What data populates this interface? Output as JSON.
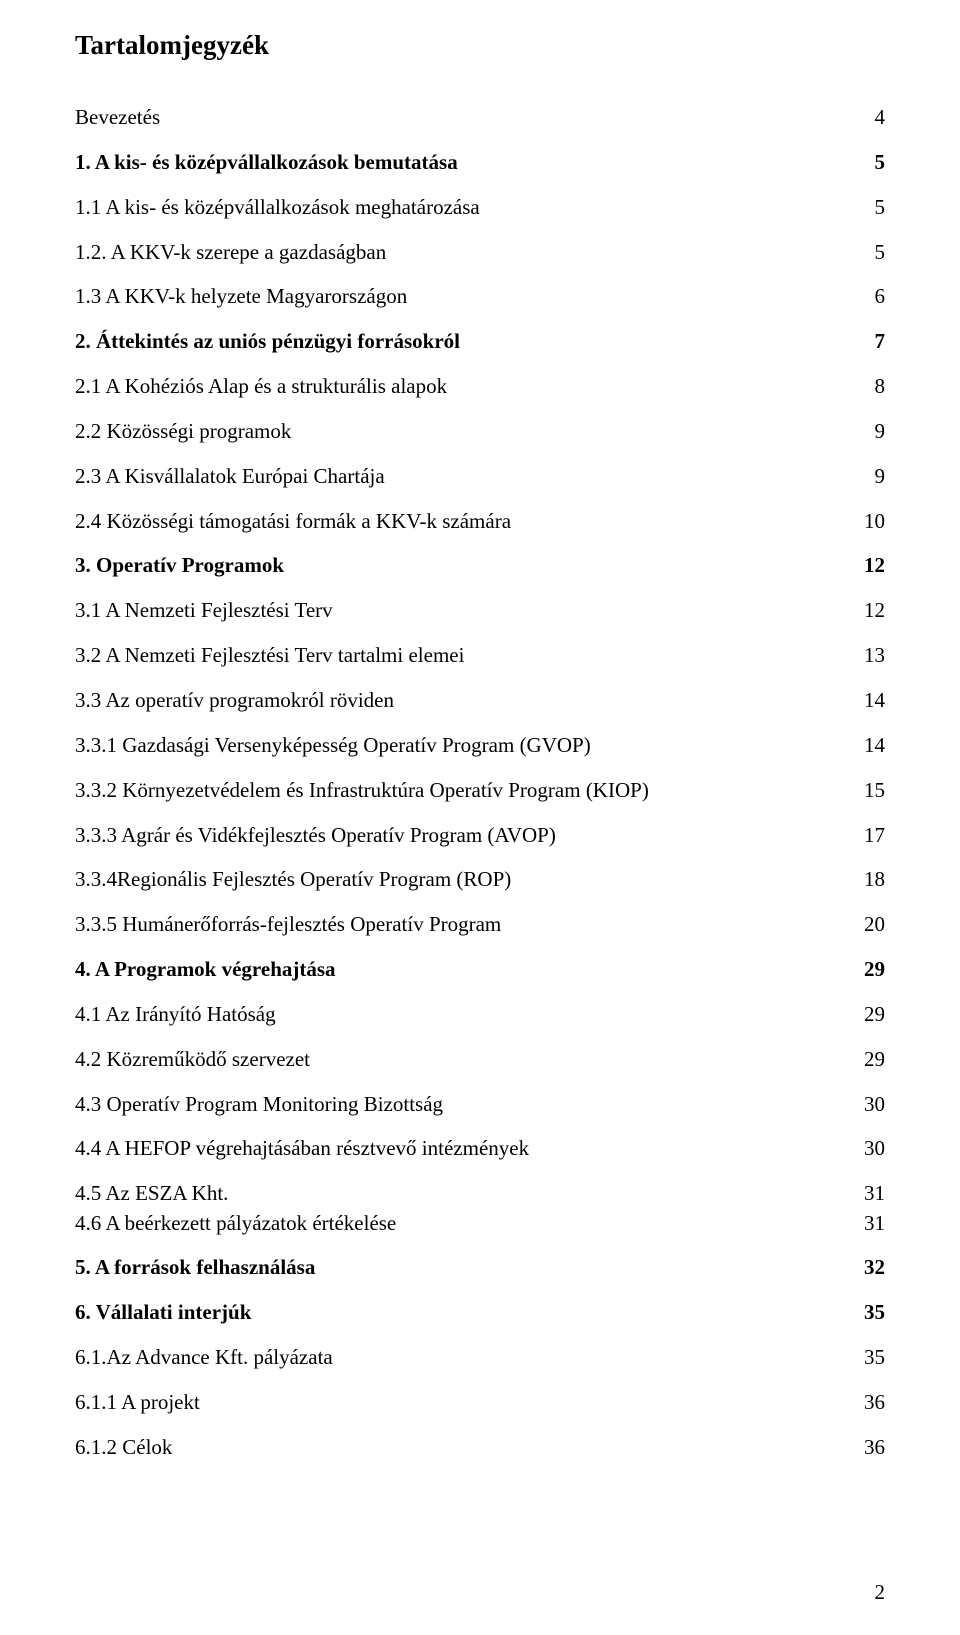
{
  "title": "Tartalomjegyzék",
  "entries": [
    {
      "label": "Bevezetés",
      "page": "4",
      "bold": false
    },
    {
      "label": "1. A kis- és középvállalkozások bemutatása",
      "page": "5",
      "bold": true
    },
    {
      "label": "1.1 A kis- és középvállalkozások meghatározása",
      "page": "5",
      "bold": false
    },
    {
      "label": "1.2. A KKV-k szerepe a gazdaságban",
      "page": "5",
      "bold": false
    },
    {
      "label": "1.3 A KKV-k helyzete Magyarországon",
      "page": "6",
      "bold": false
    },
    {
      "label": "2. Áttekintés az uniós pénzügyi forrásokról",
      "page": "7",
      "bold": true
    },
    {
      "label": "2.1 A Kohéziós Alap és a strukturális alapok",
      "page": "8",
      "bold": false
    },
    {
      "label": "2.2 Közösségi programok",
      "page": "9",
      "bold": false
    },
    {
      "label": "2.3 A Kisvállalatok Európai Chartája",
      "page": "9",
      "bold": false
    },
    {
      "label": "2.4 Közösségi támogatási formák a KKV-k számára",
      "page": "10",
      "bold": false
    },
    {
      "label": "3. Operatív Programok",
      "page": "12",
      "bold": true
    },
    {
      "label": "3.1 A Nemzeti Fejlesztési Terv",
      "page": "12",
      "bold": false
    },
    {
      "label": "3.2 A Nemzeti Fejlesztési Terv tartalmi elemei",
      "page": "13",
      "bold": false
    },
    {
      "label": "3.3 Az operatív programokról röviden",
      "page": "14",
      "bold": false
    },
    {
      "label": "3.3.1 Gazdasági Versenyképesség Operatív Program (GVOP)",
      "page": "14",
      "bold": false
    },
    {
      "label": "3.3.2 Környezetvédelem és Infrastruktúra Operatív Program (KIOP)",
      "page": "15",
      "bold": false
    },
    {
      "label": "3.3.3 Agrár és Vidékfejlesztés Operatív Program (AVOP)",
      "page": "17",
      "bold": false
    },
    {
      "label": "3.3.4Regionális Fejlesztés Operatív Program (ROP)",
      "page": "18",
      "bold": false
    },
    {
      "label": "3.3.5 Humánerőforrás-fejlesztés Operatív Program",
      "page": "20",
      "bold": false
    },
    {
      "label": "4. A Programok végrehajtása",
      "page": "29",
      "bold": true
    },
    {
      "label": "4.1 Az Irányító Hatóság",
      "page": "29",
      "bold": false
    },
    {
      "label": "4.2 Közreműködő szervezet",
      "page": "29",
      "bold": false
    },
    {
      "label": "4.3 Operatív Program Monitoring Bizottság",
      "page": "30",
      "bold": false
    },
    {
      "label": "4.4 A HEFOP végrehajtásában résztvevő intézmények",
      "page": "30",
      "bold": false
    },
    {
      "label": "4.5 Az ESZA Kht.",
      "page": "31",
      "bold": false,
      "tight": true
    },
    {
      "label": "4.6 A beérkezett pályázatok értékelése",
      "page": "31",
      "bold": false
    },
    {
      "label": "5. A források felhasználása",
      "page": "32",
      "bold": true
    },
    {
      "label": "6. Vállalati interjúk",
      "page": "35",
      "bold": true
    },
    {
      "label": "6.1.Az Advance Kft. pályázata",
      "page": "35",
      "bold": false
    },
    {
      "label": "6.1.1 A projekt",
      "page": "36",
      "bold": false
    },
    {
      "label": "6.1.2 Célok",
      "page": "36",
      "bold": false
    }
  ],
  "page_number": "2",
  "colors": {
    "background": "#ffffff",
    "text": "#000000"
  },
  "typography": {
    "font_family": "Times New Roman",
    "title_fontsize": 27,
    "body_fontsize": 21
  }
}
